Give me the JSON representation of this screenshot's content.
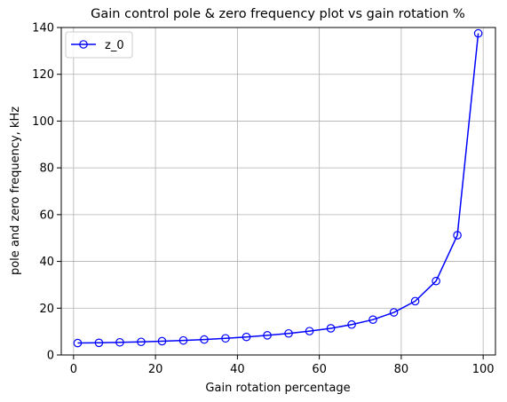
{
  "chart_data": {
    "type": "line",
    "title": "Gain control pole & zero frequency plot vs gain rotation %",
    "xlabel": "Gain rotation percentage",
    "ylabel": "pole and zero frequency, kHz",
    "xlim": [
      -3,
      103
    ],
    "ylim": [
      0,
      140
    ],
    "xticks": [
      0,
      20,
      40,
      60,
      80,
      100
    ],
    "yticks": [
      0,
      20,
      40,
      60,
      80,
      100,
      120,
      140
    ],
    "xtick_labels": [
      "0",
      "20",
      "40",
      "60",
      "80",
      "100"
    ],
    "ytick_labels": [
      "0",
      "20",
      "40",
      "60",
      "80",
      "100",
      "120",
      "140"
    ],
    "grid": true,
    "legend_position": "top-left",
    "series": [
      {
        "name": "z_0",
        "color": "#0000ff",
        "marker": "circle-open",
        "x": [
          1,
          6.2,
          11.3,
          16.5,
          21.6,
          26.8,
          31.9,
          37.1,
          42.2,
          47.3,
          52.5,
          57.6,
          62.8,
          67.9,
          73.1,
          78.2,
          83.4,
          88.5,
          93.7,
          98.8
        ],
        "y": [
          5.1,
          5.2,
          5.4,
          5.6,
          5.9,
          6.2,
          6.6,
          7.1,
          7.7,
          8.4,
          9.2,
          10.2,
          11.4,
          13.0,
          15.1,
          18.2,
          23.0,
          31.6,
          51.2,
          137.5
        ]
      }
    ]
  }
}
